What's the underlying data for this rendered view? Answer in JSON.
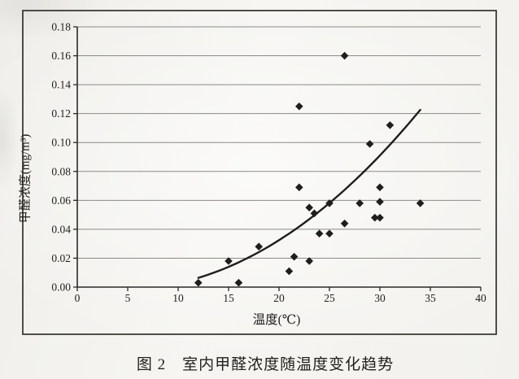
{
  "figure": {
    "caption": "图 2　室内甲醛浓度随温度变化趋势"
  },
  "chart_data": {
    "type": "scatter",
    "title": "",
    "xlabel": "温度(℃)",
    "ylabel": "甲醛浓度(mg/m³)",
    "xlim": [
      0,
      40
    ],
    "ylim": [
      0,
      0.18
    ],
    "x_ticks": [
      "0",
      "5",
      "10",
      "15",
      "20",
      "25",
      "30",
      "35",
      "40"
    ],
    "y_ticks": [
      "0.00",
      "0.02",
      "0.04",
      "0.06",
      "0.08",
      "0.10",
      "0.12",
      "0.14",
      "0.16",
      "0.18"
    ],
    "grid": "horizontal",
    "legend": "none",
    "marker": "diamond",
    "points": [
      [
        12,
        0.003
      ],
      [
        15,
        0.018
      ],
      [
        16,
        0.003
      ],
      [
        18,
        0.028
      ],
      [
        21,
        0.011
      ],
      [
        21.5,
        0.021
      ],
      [
        22,
        0.069
      ],
      [
        22,
        0.125
      ],
      [
        23,
        0.018
      ],
      [
        23,
        0.055
      ],
      [
        23.5,
        0.051
      ],
      [
        24,
        0.037
      ],
      [
        25,
        0.037
      ],
      [
        25,
        0.058
      ],
      [
        26.5,
        0.044
      ],
      [
        26.5,
        0.16
      ],
      [
        28,
        0.058
      ],
      [
        29,
        0.099
      ],
      [
        29.5,
        0.048
      ],
      [
        30,
        0.048
      ],
      [
        30,
        0.059
      ],
      [
        30,
        0.069
      ],
      [
        31,
        0.112
      ],
      [
        34,
        0.058
      ]
    ],
    "trend": {
      "shape": "quadratic",
      "coefficients": [
        0.00203,
        -0.001371,
        0.0001446
      ],
      "x_range": [
        12,
        34
      ]
    },
    "colors": {
      "marker": "#1f1e1c",
      "curve": "#1f1e1c",
      "grid": "#8c8a86",
      "axis": "#2a2927",
      "frame": "#3d3b38",
      "tick_text": "#23211e"
    }
  }
}
